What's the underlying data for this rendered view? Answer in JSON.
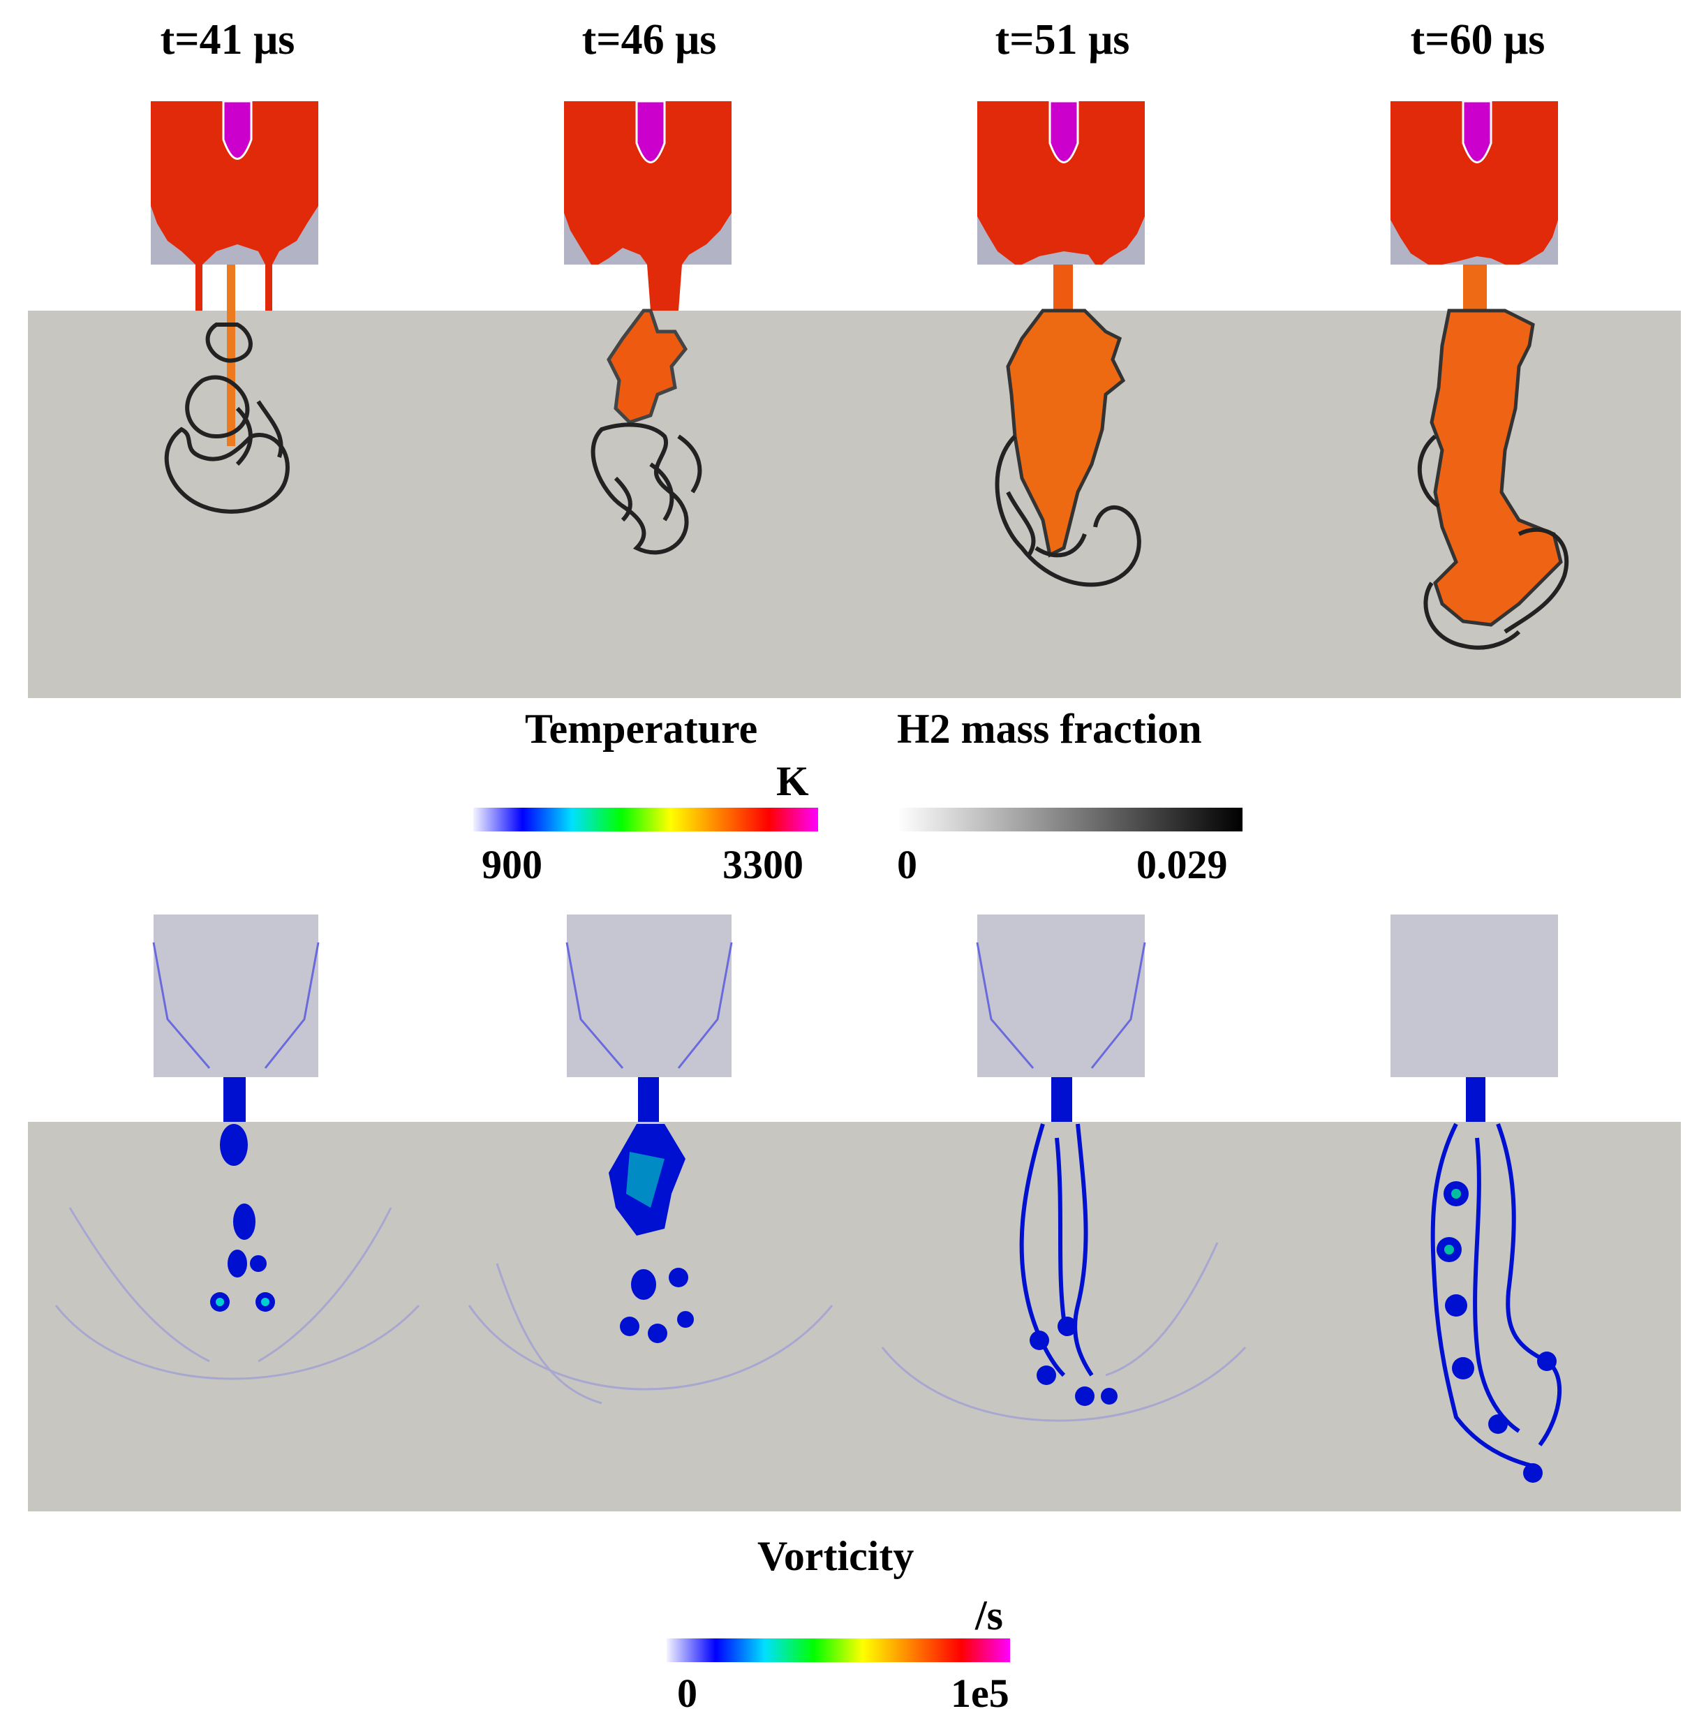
{
  "time_labels": [
    "t=41 μs",
    "t=46 μs",
    "t=51 μs",
    "t=60 μs"
  ],
  "colorbars": {
    "temperature": {
      "title": "Temperature",
      "unit": "K",
      "min": "900",
      "max": "3300",
      "colors": [
        "#f4f4ff",
        "#0000ff",
        "#00e0ff",
        "#00ff00",
        "#ffff00",
        "#ff8000",
        "#ff0000",
        "#ff00ff"
      ]
    },
    "h2": {
      "title": "H2 mass fraction",
      "min": "0",
      "max": "0.029",
      "colors": [
        "#ffffff",
        "#000000"
      ]
    },
    "vorticity": {
      "title": "Vorticity",
      "unit": "/s",
      "min": "0",
      "max": "1e5",
      "colors": [
        "#f4f4ff",
        "#0000ff",
        "#00e0ff",
        "#00ff00",
        "#ffff00",
        "#ff8000",
        "#ff0000",
        "#ff00ff"
      ]
    }
  },
  "colors": {
    "ambient_gray": "#c8c6c0",
    "chamber_background": "#b3b3c6",
    "flame_red": "#e0200a",
    "flame_orange": "#ee6a10",
    "core_magenta": "#cc00cc",
    "vortex_blue": "#0010d0"
  }
}
